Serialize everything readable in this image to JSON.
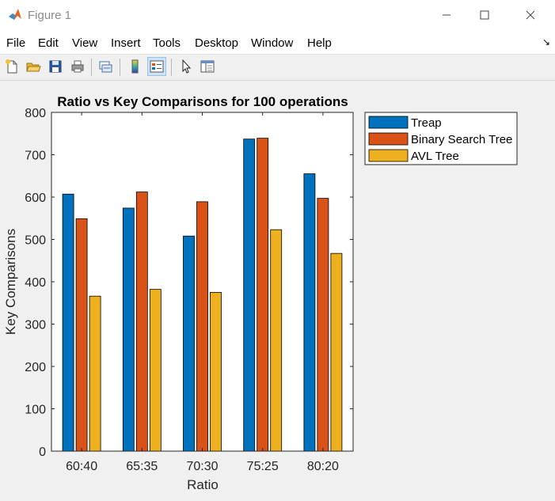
{
  "window": {
    "title": "Figure 1"
  },
  "menu": [
    "File",
    "Edit",
    "View",
    "Insert",
    "Tools",
    "Desktop",
    "Window",
    "Help"
  ],
  "toolbar": {
    "icons": [
      "new-figure-icon",
      "open-file-icon",
      "save-icon",
      "print-icon",
      "link-plot-icon",
      "colorbar-icon",
      "legend-icon",
      "pointer-icon",
      "property-inspector-icon"
    ]
  },
  "colors": {
    "treap": "#0072BD",
    "bst": "#D95319",
    "avl": "#EDB120"
  },
  "chart_data": {
    "type": "bar",
    "title": "Ratio vs Key Comparisons for 100 operations",
    "xlabel": "Ratio",
    "ylabel": "Key Comparisons",
    "categories": [
      "60:40",
      "65:35",
      "70:30",
      "75:25",
      "80:20"
    ],
    "ylim": [
      0,
      800
    ],
    "yticks": [
      0,
      100,
      200,
      300,
      400,
      500,
      600,
      700,
      800
    ],
    "grid": false,
    "legend_position": "outside-right-top",
    "series": [
      {
        "name": "Treap",
        "color": "#0072BD",
        "values": [
          607,
          574,
          508,
          737,
          655
        ]
      },
      {
        "name": "Binary Search Tree",
        "color": "#D95319",
        "values": [
          549,
          612,
          589,
          739,
          597
        ]
      },
      {
        "name": "AVL Tree",
        "color": "#EDB120",
        "values": [
          366,
          382,
          375,
          523,
          467
        ]
      }
    ]
  }
}
